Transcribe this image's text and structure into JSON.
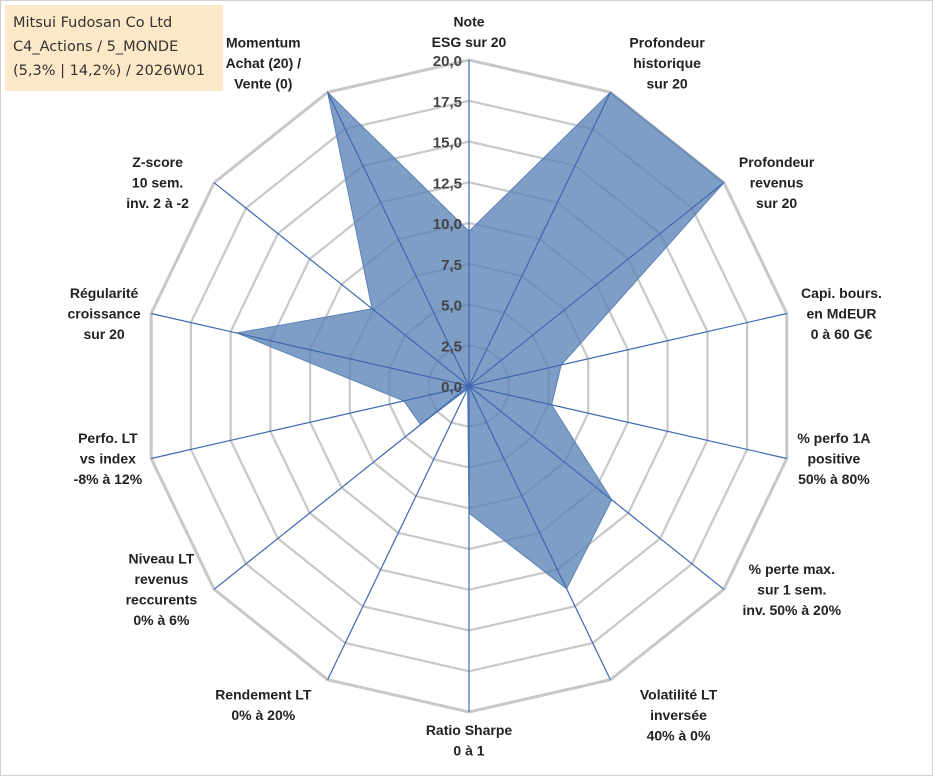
{
  "info_box": {
    "line1": "Mitsui Fudosan Co Ltd",
    "line2": "C4_Actions / 5_MONDE",
    "line3": "(5,3% | 14,2%) / 2026W01"
  },
  "colors": {
    "fill": "#5b83b6",
    "fill_opacity": 0.78,
    "spoke": "#3f67b0",
    "grid": "#c8c8c8",
    "info_box_bg": "#fde9c8"
  },
  "chart_data": {
    "type": "radar",
    "rmax": 20,
    "grid_levels": [
      2.5,
      5,
      7.5,
      10,
      12.5,
      15,
      17.5,
      20
    ],
    "tick_labels": [
      "0,0",
      "2,5",
      "5,0",
      "7,5",
      "10,0",
      "12,5",
      "15,0",
      "17,5",
      "20,0"
    ],
    "axes": [
      {
        "label": [
          "Note",
          "ESG sur 20"
        ],
        "value": 9.5
      },
      {
        "label": [
          "Profondeur",
          "historique",
          "sur 20"
        ],
        "value": 20
      },
      {
        "label": [
          "Profondeur",
          "revenus",
          "sur 20"
        ],
        "value": 20
      },
      {
        "label": [
          "Capi. bours.",
          "en MdEUR",
          "0 à 60 G€"
        ],
        "value": 5.8
      },
      {
        "label": [
          "% perfo 1A",
          "positive",
          "50% à 80%"
        ],
        "value": 5.2
      },
      {
        "label": [
          "% perte max.",
          "sur 1 sem.",
          "inv. 50% à 20%"
        ],
        "value": 11.2
      },
      {
        "label": [
          "Volatilité LT",
          "inversée",
          "40% à 0%"
        ],
        "value": 13.8
      },
      {
        "label": [
          "Ratio Sharpe",
          "0 à 1"
        ],
        "value": 7.8
      },
      {
        "label": [
          "Rendement LT",
          "0% à 20%"
        ],
        "value": 0.2
      },
      {
        "label": [
          "Niveau LT",
          "revenus",
          "reccurents",
          "0% à 6%"
        ],
        "value": 3.8
      },
      {
        "label": [
          "Perfo. LT",
          "vs index",
          "-8% à 12%"
        ],
        "value": 4.1
      },
      {
        "label": [
          "Régularité",
          "croissance",
          "sur 20"
        ],
        "value": 14.6
      },
      {
        "label": [
          "Z-score",
          "10 sem.",
          "inv. 2 à -2"
        ],
        "value": 7.6
      },
      {
        "label": [
          "Momentum",
          "Achat (20) /",
          "Vente (0)"
        ],
        "value": 20
      }
    ]
  }
}
